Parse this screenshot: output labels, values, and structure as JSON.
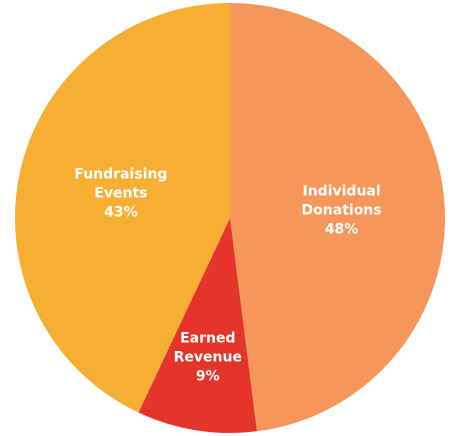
{
  "chart_data": {
    "type": "pie",
    "categories": [
      "Individual Donations",
      "Earned Revenue",
      "Fundraising Events"
    ],
    "values": [
      48,
      9,
      43
    ],
    "value_labels": [
      "48%",
      "9%",
      "43%"
    ],
    "colors": [
      "#f5975b",
      "#e5352a",
      "#f6ae33"
    ]
  }
}
